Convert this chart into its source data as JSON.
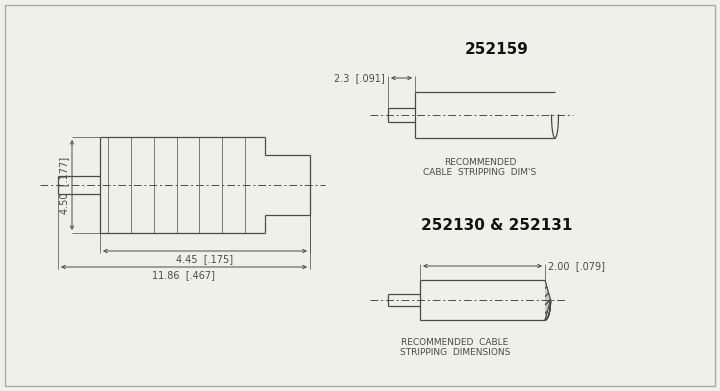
{
  "bg_color": "#f0f0eb",
  "line_color": "#4a4a4a",
  "title1": "252159",
  "title2": "252130 & 252131",
  "dim1_label": "2.3  [.091]",
  "dim2_label": "2.00  [.079]",
  "dim_left_label": "4.50  [.177]",
  "dim_bot1_label": "4.45  [.175]",
  "dim_bot2_label": "11.86  [.467]",
  "caption1a": "RECOMMENDED",
  "caption1b": "CABLE  STRIPPING  DIM'S",
  "caption2a": "RECOMMENDED  CABLE",
  "caption2b": "STRIPPING  DIMENSIONS",
  "font_size_title": 11,
  "font_size_dim": 7,
  "font_size_cap": 6.5
}
